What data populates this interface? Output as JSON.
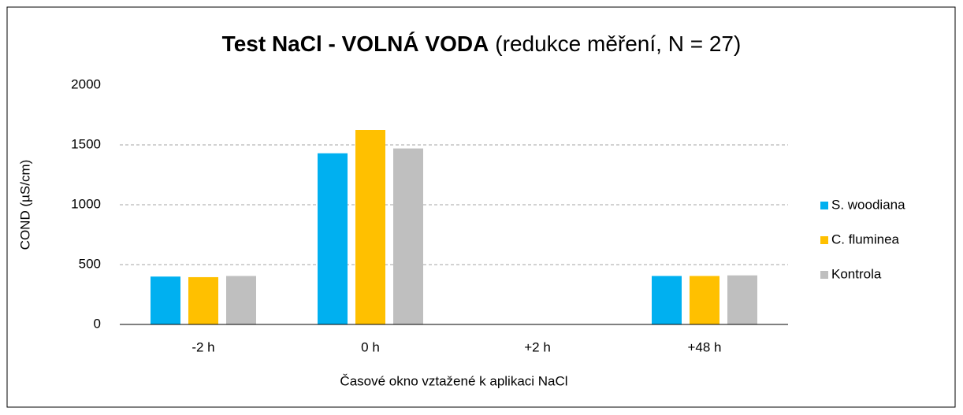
{
  "chart_data": {
    "type": "bar",
    "title": [
      "Test NaCl - VOLNÁ VODA",
      "(redukce měření, N = 27)"
    ],
    "x_label": "Časové okno vztažené k aplikaci NaCl",
    "y_label": "COND (µS/cm)",
    "categories": [
      "-2 h",
      "0 h",
      "+2 h",
      "+48 h"
    ],
    "series": [
      {
        "name": "S. woodiana",
        "color": "#00b0f0",
        "values": [
          400,
          1430,
          null,
          405
        ]
      },
      {
        "name": "C. fluminea",
        "color": "#ffc000",
        "values": [
          395,
          1625,
          null,
          405
        ]
      },
      {
        "name": "Kontrola",
        "color": "#bfbfbf",
        "values": [
          405,
          1470,
          null,
          410
        ]
      }
    ],
    "ylim": [
      0,
      2000
    ],
    "yticks": [
      0,
      500,
      1000,
      1500,
      2000
    ],
    "grid": true,
    "legend": "right"
  }
}
